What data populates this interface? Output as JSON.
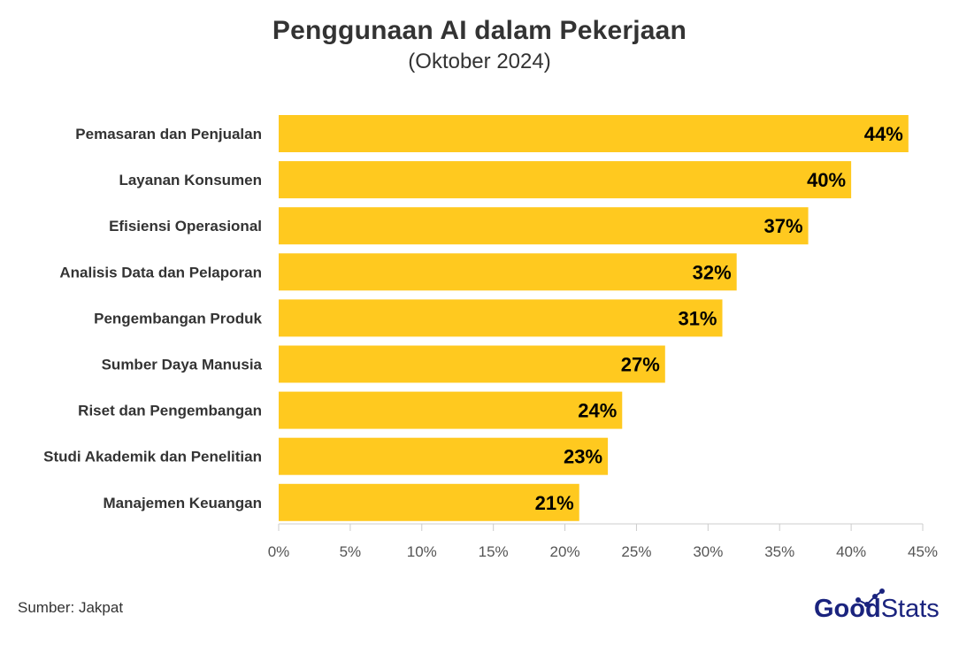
{
  "header": {
    "title": "Penggunaan AI dalam Pekerjaan",
    "subtitle": "(Oktober 2024)"
  },
  "footer": {
    "source": "Sumber: Jakpat",
    "logo_part1": "Good",
    "logo_part2": "Stats"
  },
  "colors": {
    "bar": "#FFC91F",
    "label_text": "#333333",
    "value_text": "#000000",
    "axis": "#cccccc",
    "tick_text": "#555555",
    "logo": "#1a237e"
  },
  "chart_data": {
    "type": "bar",
    "orientation": "horizontal",
    "categories": [
      "Pemasaran dan Penjualan",
      "Layanan Konsumen",
      "Efisiensi Operasional",
      "Analisis Data dan Pelaporan",
      "Pengembangan Produk",
      "Sumber Daya Manusia",
      "Riset dan Pengembangan",
      "Studi Akademik dan Penelitian",
      "Manajemen Keuangan"
    ],
    "values": [
      44,
      40,
      37,
      32,
      31,
      27,
      24,
      23,
      21
    ],
    "value_labels": [
      "44%",
      "40%",
      "37%",
      "32%",
      "31%",
      "27%",
      "24%",
      "23%",
      "21%"
    ],
    "xlim": [
      0,
      45
    ],
    "x_ticks": [
      0,
      5,
      10,
      15,
      20,
      25,
      30,
      35,
      40,
      45
    ],
    "x_tick_labels": [
      "0%",
      "5%",
      "10%",
      "15%",
      "20%",
      "25%",
      "30%",
      "35%",
      "40%",
      "45%"
    ],
    "grid": false
  }
}
